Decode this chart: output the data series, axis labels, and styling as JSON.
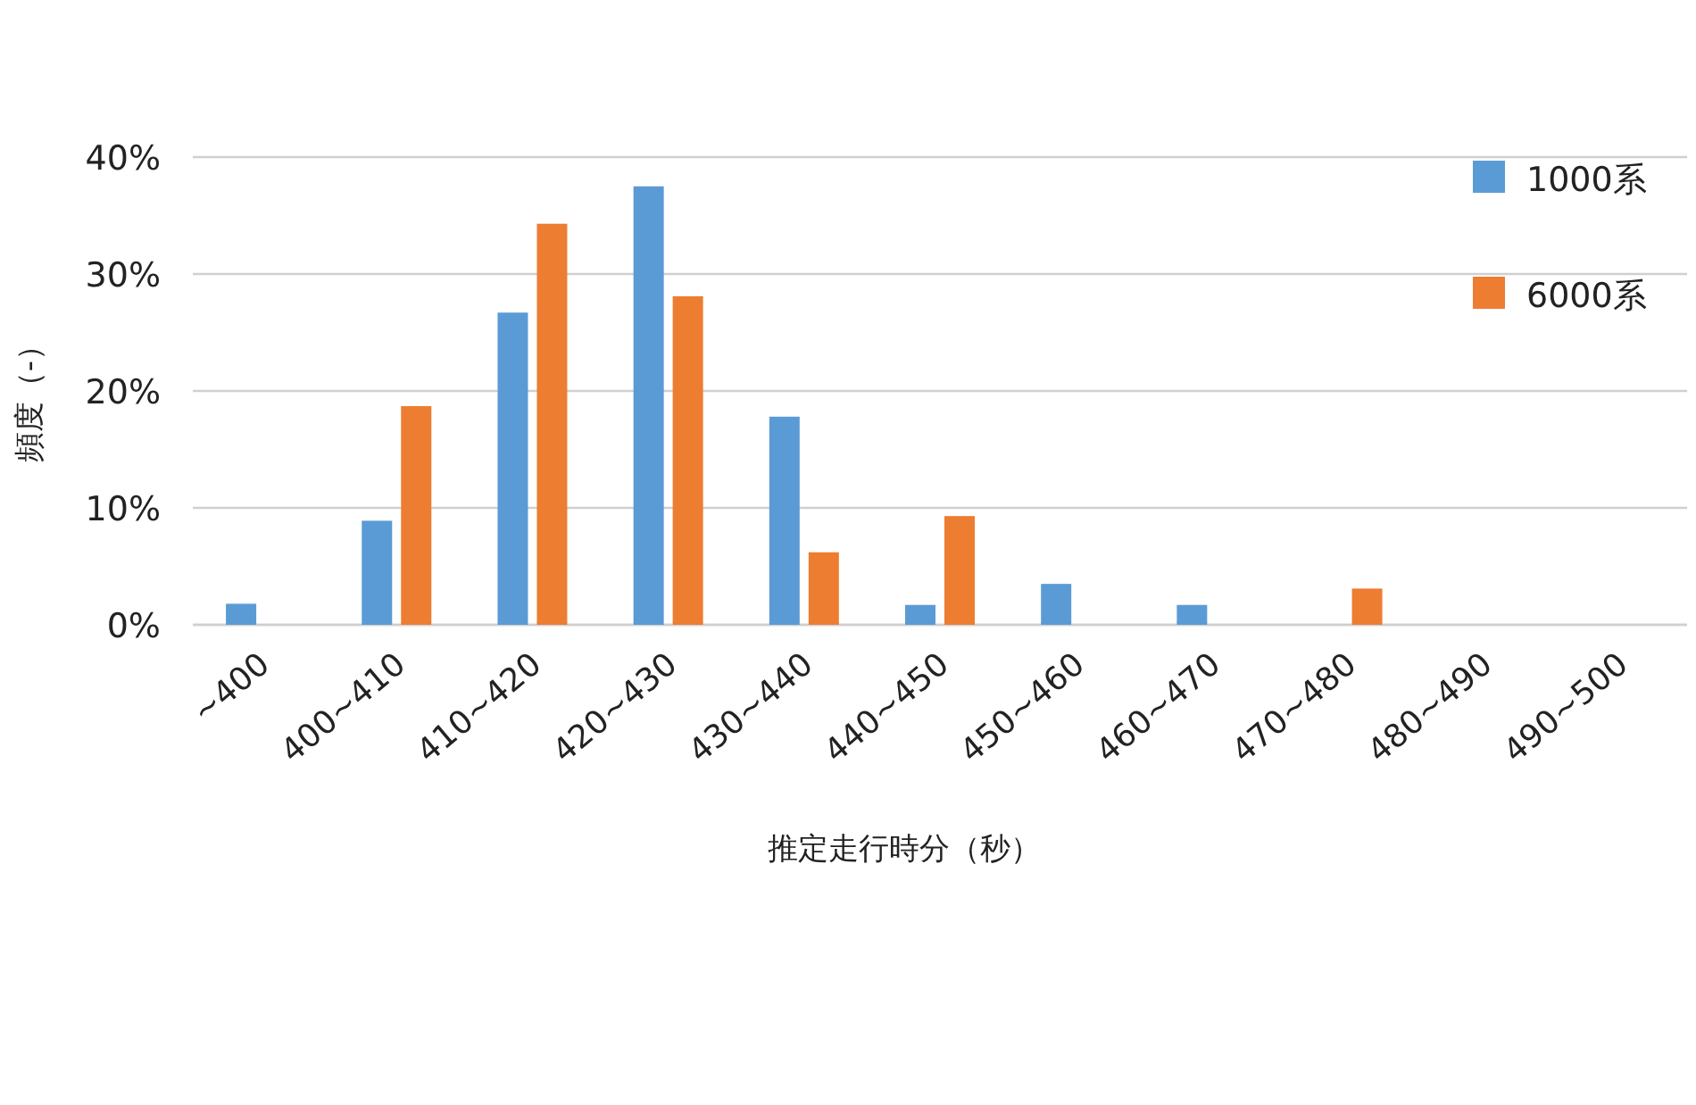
{
  "chart_data": {
    "type": "bar",
    "xlabel": "推定走行時分（秒）",
    "ylabel": "頻度（-）",
    "categories": [
      "~400",
      "400~410",
      "410~420",
      "420~430",
      "430~440",
      "440~450",
      "450~460",
      "460~470",
      "470~480",
      "480~490",
      "490~500"
    ],
    "series": [
      {
        "name": "1000系",
        "color": "#5b9bd5",
        "values": [
          1.8,
          8.9,
          26.7,
          37.5,
          17.8,
          1.7,
          3.5,
          1.7,
          null,
          null,
          null
        ]
      },
      {
        "name": "6000系",
        "color": "#ed7d31",
        "values": [
          null,
          18.7,
          34.3,
          28.1,
          6.2,
          9.3,
          null,
          null,
          3.1,
          null,
          null
        ]
      }
    ],
    "ylim": [
      0,
      40
    ],
    "yticks": [
      {
        "value": 0,
        "label": "0%"
      },
      {
        "value": 10,
        "label": "10%"
      },
      {
        "value": 20,
        "label": "20%"
      },
      {
        "value": 30,
        "label": "30%"
      },
      {
        "value": 40,
        "label": "40%"
      }
    ],
    "grid": "y",
    "legend": "top right"
  }
}
